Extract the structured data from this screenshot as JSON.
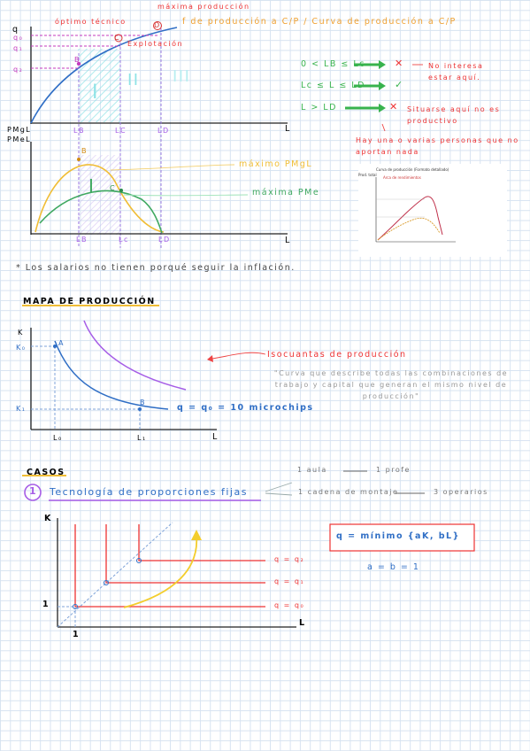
{
  "section1": {
    "labels": {
      "q": "q",
      "q0": "q₀",
      "q1": "q₁",
      "q2": "q₂",
      "L": "L",
      "optimo_tecnico": "óptimo técnico",
      "maxima_produccion": "máxima producción",
      "C_point": "C",
      "D_point": "D",
      "B_point": "B",
      "explotacion": "Explotación",
      "zone_I": "I",
      "zone_II": "II",
      "zone_III": "III",
      "LB": "LB",
      "LC": "LC",
      "LD": "LD",
      "pmgl": "PMgL",
      "pmel": "PMeL",
      "maximo_pmgl": "máximo PMgL",
      "maxima_pme": "máxima PMe",
      "lower_I": "I",
      "lower_C": "C",
      "lower_B": "B",
      "lower_LB": "LB",
      "lower_LC": "Lc",
      "lower_LD": "LD",
      "lower_L": "L"
    },
    "title": "f de producción a C/P / Curva de producción a C/P",
    "conditions": [
      {
        "text": "0 < LB ≤ Lc",
        "mark": "✕",
        "note": "No interesa estar aquí."
      },
      {
        "text": "Lc ≤ L ≤ LD",
        "mark": "✓",
        "note": ""
      },
      {
        "text": "L > LD",
        "mark": "✕",
        "note": "Situarse aquí no es productivo"
      }
    ],
    "annotation": "Hay una o varias personas que no aportan nada",
    "footnote": "* Los salarios no tienen porqué seguir la inflación."
  },
  "embedded_chart": {
    "title": "Curva de producción (Formato detallado)",
    "subtitle": "Arca de rendimientos",
    "ylabel": "Prod. total"
  },
  "section2": {
    "title": "MAPA DE PRODUCCIÓN",
    "K": "K",
    "K0": "K₀",
    "K1": "K₁",
    "A": "A",
    "B": "B",
    "L": "L",
    "L0": "L₀",
    "L1": "L₁",
    "curve_label": "q = q₀ = 10 microchips",
    "isocuanta_title": "Isocuantas de producción",
    "isocuanta_def": "\"Curva que describe todas las combinaciones de trabajo y capital que generan el mismo nivel de producción\""
  },
  "section3": {
    "title": "CASOS",
    "case_num": "1",
    "case_title": "Tecnología de proporciones fijas",
    "ex1_left": "1 aula",
    "ex1_right": "1 profe",
    "ex2_left": "1 cadena de montaje",
    "ex2_right": "3 operarios",
    "formula": "q = mínimo {aK, bL}",
    "coef": "a = b = 1",
    "K": "K",
    "L": "L",
    "one_y": "1",
    "one_x": "1",
    "q2": "q = q₂",
    "q1": "q = q₁",
    "q0": "q = q₀"
  }
}
